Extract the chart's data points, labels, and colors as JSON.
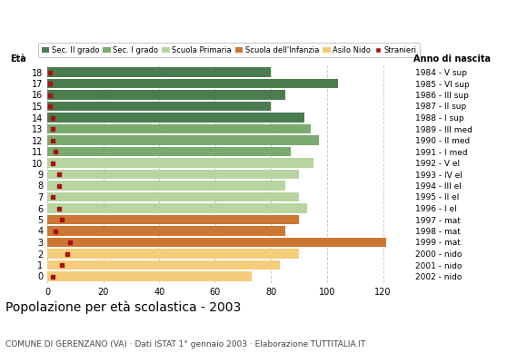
{
  "ages": [
    18,
    17,
    16,
    15,
    14,
    13,
    12,
    11,
    10,
    9,
    8,
    7,
    6,
    5,
    4,
    3,
    2,
    1,
    0
  ],
  "years": [
    "1984 - V sup",
    "1985 - VI sup",
    "1986 - III sup",
    "1987 - II sup",
    "1988 - I sup",
    "1989 - III med",
    "1990 - II med",
    "1991 - I med",
    "1992 - V el",
    "1993 - IV el",
    "1994 - III el",
    "1995 - II el",
    "1996 - I el",
    "1997 - mat",
    "1998 - mat",
    "1999 - mat",
    "2000 - nido",
    "2001 - nido",
    "2002 - nido"
  ],
  "bar_values": [
    80,
    104,
    85,
    80,
    92,
    94,
    97,
    87,
    95,
    90,
    85,
    90,
    93,
    90,
    85,
    121,
    90,
    83,
    73
  ],
  "stranieri_values": [
    1,
    1,
    1,
    1,
    2,
    2,
    2,
    3,
    2,
    4,
    4,
    2,
    4,
    5,
    3,
    8,
    7,
    5,
    2
  ],
  "bar_colors_by_age": {
    "18": "#4a7c4e",
    "17": "#4a7c4e",
    "16": "#4a7c4e",
    "15": "#4a7c4e",
    "14": "#4a7c4e",
    "13": "#7aaa6e",
    "12": "#7aaa6e",
    "11": "#7aaa6e",
    "10": "#b8d4a0",
    "9": "#b8d4a0",
    "8": "#b8d4a0",
    "7": "#b8d4a0",
    "6": "#b8d4a0",
    "5": "#cc7733",
    "4": "#cc7733",
    "3": "#cc7733",
    "2": "#f5cc7a",
    "1": "#f5cc7a",
    "0": "#f5cc7a"
  },
  "legend_labels": [
    "Sec. II grado",
    "Sec. I grado",
    "Scuola Primaria",
    "Scuola dell'Infanzia",
    "Asilo Nido",
    "Stranieri"
  ],
  "legend_colors": [
    "#4a7c4e",
    "#7aaa6e",
    "#b8d4a0",
    "#cc7733",
    "#f5cc7a",
    "#aa1111"
  ],
  "title": "Popolazione per età scolastica - 2003",
  "subtitle": "COMUNE DI GERENZANO (VA) · Dati ISTAT 1° gennaio 2003 · Elaborazione TUTTITALIA.IT",
  "label_eta": "Età",
  "label_anno": "Anno di nascita",
  "xlim": [
    0,
    130
  ],
  "xticks": [
    0,
    20,
    40,
    60,
    80,
    100,
    120
  ],
  "stranieri_color": "#aa1111",
  "bar_height": 0.85,
  "background_color": "#ffffff",
  "grid_color": "#cccccc"
}
